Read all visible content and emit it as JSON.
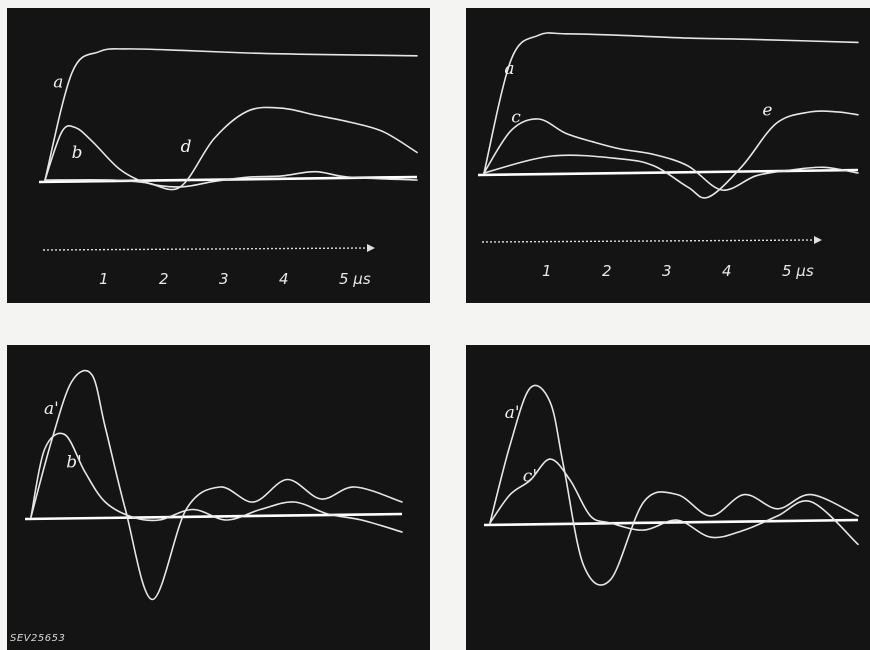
{
  "figure_code": "SEV25653",
  "chart_data": [
    {
      "type": "line",
      "panel": "top-left",
      "x_unit": "µs",
      "x_ticks": [
        "1",
        "2",
        "3",
        "4",
        "5 µs"
      ],
      "series": [
        {
          "name": "a",
          "x": [
            0,
            0.4,
            0.8,
            1.2,
            2,
            3,
            4,
            5.5
          ],
          "y": [
            0,
            0.78,
            0.93,
            0.95,
            0.94,
            0.92,
            0.91,
            0.9
          ]
        },
        {
          "name": "b",
          "x": [
            0,
            0.25,
            0.45,
            0.7,
            1.1,
            1.5,
            2,
            2.5,
            3,
            3.5,
            4,
            4.5,
            5.5
          ],
          "y": [
            0,
            0.35,
            0.38,
            0.28,
            0.08,
            -0.02,
            -0.05,
            -0.01,
            0.02,
            0.03,
            0.06,
            0.02,
            0
          ]
        },
        {
          "name": "d",
          "x": [
            0,
            1,
            1.5,
            2,
            2.5,
            3,
            3.5,
            4,
            4.5,
            5,
            5.5
          ],
          "y": [
            0,
            0,
            -0.02,
            -0.05,
            0.3,
            0.5,
            0.52,
            0.47,
            0.42,
            0.35,
            0.2
          ]
        }
      ]
    },
    {
      "type": "line",
      "panel": "top-right",
      "x_unit": "µs",
      "x_ticks": [
        "1",
        "2",
        "3",
        "4",
        "5 µs"
      ],
      "series": [
        {
          "name": "a",
          "x": [
            0,
            0.4,
            0.8,
            1.2,
            2,
            3,
            4,
            5.5
          ],
          "y": [
            0,
            0.8,
            0.97,
            0.98,
            0.97,
            0.95,
            0.94,
            0.92
          ]
        },
        {
          "name": "c",
          "x": [
            0,
            0.4,
            0.8,
            1.2,
            1.6,
            2,
            2.5,
            3,
            3.5,
            4,
            4.5,
            5,
            5.5
          ],
          "y": [
            0,
            0.3,
            0.38,
            0.28,
            0.22,
            0.17,
            0.13,
            0.05,
            -0.12,
            -0.02,
            0.02,
            0.04,
            0
          ]
        },
        {
          "name": "e",
          "x": [
            0,
            1,
            2,
            2.5,
            3,
            3.3,
            3.8,
            4.3,
            4.8,
            5.2,
            5.5
          ],
          "y": [
            0,
            0.12,
            0.1,
            0.05,
            -0.1,
            -0.17,
            0.05,
            0.35,
            0.43,
            0.43,
            0.41
          ]
        }
      ]
    },
    {
      "type": "line",
      "panel": "bottom-left",
      "series": [
        {
          "name": "a'",
          "x": [
            0,
            0.3,
            0.6,
            0.9,
            1.1,
            1.4,
            1.8,
            2.3,
            2.8,
            3.3,
            3.8,
            4.3,
            4.8,
            5.5
          ],
          "y": [
            0,
            0.5,
            0.9,
            0.95,
            0.6,
            0.05,
            -0.55,
            0.05,
            0.2,
            0.1,
            0.25,
            0.12,
            0.2,
            0.1
          ]
        },
        {
          "name": "b'",
          "x": [
            0,
            0.2,
            0.5,
            0.8,
            1.1,
            1.5,
            1.9,
            2.4,
            2.9,
            3.4,
            3.9,
            4.4,
            4.9,
            5.5
          ],
          "y": [
            0,
            0.45,
            0.55,
            0.3,
            0.1,
            0,
            -0.02,
            0.05,
            -0.02,
            0.05,
            0.1,
            0.02,
            -0.02,
            -0.1
          ]
        }
      ]
    },
    {
      "type": "line",
      "panel": "bottom-right",
      "series": [
        {
          "name": "a'",
          "x": [
            0,
            0.3,
            0.6,
            0.9,
            1.1,
            1.4,
            1.8,
            2.3,
            2.8,
            3.3,
            3.8,
            4.3,
            4.8,
            5.5
          ],
          "y": [
            0,
            0.55,
            0.95,
            0.85,
            0.4,
            -0.3,
            -0.4,
            0.15,
            0.2,
            0.05,
            0.2,
            0.1,
            0.2,
            0.05
          ]
        },
        {
          "name": "c'",
          "x": [
            0,
            0.3,
            0.6,
            0.9,
            1.2,
            1.5,
            1.8,
            2.3,
            2.8,
            3.3,
            3.8,
            4.3,
            4.8,
            5.5
          ],
          "y": [
            0,
            0.2,
            0.3,
            0.45,
            0.3,
            0.05,
            0,
            -0.05,
            0.02,
            -0.1,
            -0.05,
            0.05,
            0.15,
            -0.15
          ]
        }
      ]
    }
  ]
}
